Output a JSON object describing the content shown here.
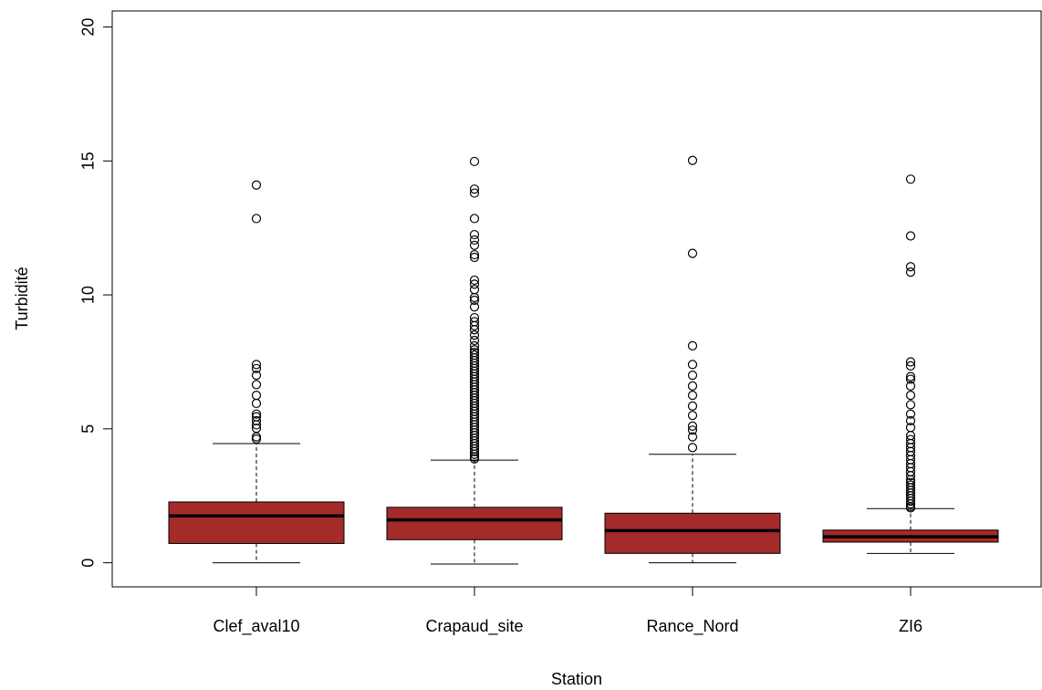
{
  "chart_data": {
    "type": "boxplot",
    "title": "",
    "xlabel": "Station",
    "ylabel": "Turbidité",
    "ylim": [
      -0.9,
      20.6
    ],
    "yticks": [
      0,
      5,
      10,
      15,
      20
    ],
    "box_fill": "#a52a2a",
    "categories": [
      "Clef_aval10",
      "Crapaud_site",
      "Rance_Nord",
      "ZI6"
    ],
    "boxes": [
      {
        "name": "Clef_aval10",
        "whisker_low": 0.0,
        "q1": 0.72,
        "median": 1.75,
        "q3": 2.27,
        "whisker_high": 4.45,
        "outliers": [
          4.62,
          4.7,
          5.02,
          5.15,
          5.3,
          5.45,
          5.55,
          5.95,
          6.25,
          6.65,
          7.0,
          7.25,
          7.4,
          12.85,
          14.1
        ]
      },
      {
        "name": "Crapaud_site",
        "whisker_low": -0.05,
        "q1": 0.86,
        "median": 1.6,
        "q3": 2.07,
        "whisker_high": 3.83,
        "outliers": [
          3.88,
          3.95,
          4.05,
          4.15,
          4.25,
          4.35,
          4.45,
          4.55,
          4.65,
          4.75,
          4.85,
          4.95,
          5.05,
          5.15,
          5.25,
          5.35,
          5.45,
          5.55,
          5.65,
          5.75,
          5.85,
          5.95,
          6.05,
          6.15,
          6.25,
          6.35,
          6.45,
          6.55,
          6.65,
          6.75,
          6.85,
          6.95,
          7.05,
          7.15,
          7.25,
          7.35,
          7.45,
          7.55,
          7.65,
          7.75,
          7.85,
          7.95,
          8.1,
          8.3,
          8.5,
          8.7,
          8.85,
          9.0,
          9.15,
          9.55,
          9.8,
          9.9,
          10.2,
          10.4,
          10.55,
          11.4,
          11.5,
          11.85,
          12.05,
          12.25,
          12.85,
          13.8,
          13.95,
          14.98
        ]
      },
      {
        "name": "Rance_Nord",
        "whisker_low": 0.0,
        "q1": 0.35,
        "median": 1.2,
        "q3": 1.85,
        "whisker_high": 4.05,
        "outliers": [
          4.3,
          4.7,
          4.95,
          5.1,
          5.5,
          5.85,
          6.25,
          6.6,
          7.0,
          7.4,
          8.1,
          11.55,
          15.02
        ]
      },
      {
        "name": "ZI6",
        "whisker_low": 0.35,
        "q1": 0.77,
        "median": 0.97,
        "q3": 1.22,
        "whisker_high": 2.02,
        "outliers": [
          2.05,
          2.1,
          2.2,
          2.3,
          2.4,
          2.5,
          2.6,
          2.7,
          2.8,
          2.9,
          3.0,
          3.1,
          3.25,
          3.4,
          3.55,
          3.7,
          3.85,
          4.0,
          4.15,
          4.3,
          4.45,
          4.6,
          4.75,
          5.05,
          5.3,
          5.55,
          5.9,
          6.25,
          6.6,
          6.85,
          6.95,
          7.35,
          7.5,
          10.85,
          11.05,
          12.2,
          14.32
        ]
      }
    ]
  }
}
